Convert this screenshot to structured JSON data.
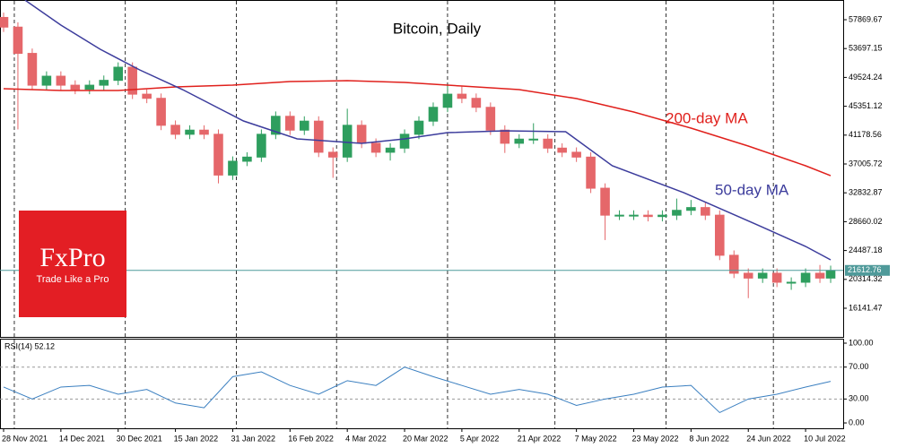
{
  "logo": {
    "brand": "FxPro",
    "tagline": "Trade Like a Pro"
  },
  "chart_data": [
    {
      "type": "candlestick",
      "title": "Bitcoin, Daily",
      "xlim": [
        -1,
        234.5
      ],
      "ylim": [
        12124,
        60721
      ],
      "yticks": [
        57869.67,
        53697.15,
        49524.24,
        45351.12,
        41178.56,
        37005.72,
        32832.87,
        28660.02,
        24487.18,
        20314.32,
        16141.47
      ],
      "xgrid": [
        3,
        34,
        65,
        93,
        124,
        154,
        185,
        215
      ],
      "last_price": 21612.76,
      "last_price_color": "#4f9a9a",
      "up_color": "#2e9e5e",
      "down_color": "#e5676a",
      "ohlc": {
        "x": [
          0,
          4,
          8,
          12,
          16,
          20,
          24,
          28,
          32,
          36,
          40,
          44,
          48,
          52,
          56,
          60,
          64,
          68,
          72,
          76,
          80,
          84,
          88,
          92,
          96,
          100,
          104,
          108,
          112,
          116,
          120,
          124,
          128,
          132,
          136,
          140,
          144,
          148,
          152,
          156,
          160,
          164,
          168,
          172,
          176,
          180,
          184,
          188,
          192,
          196,
          200,
          204,
          208,
          212,
          216,
          220,
          224,
          228,
          231
        ],
        "open": [
          58200,
          56800,
          53000,
          48400,
          49700,
          48400,
          47800,
          48400,
          49100,
          51000,
          47100,
          46500,
          42600,
          41300,
          41900,
          41300,
          35400,
          37400,
          38000,
          41300,
          43900,
          41900,
          43200,
          38700,
          38000,
          42600,
          40000,
          38700,
          39300,
          41300,
          43200,
          45200,
          47100,
          46500,
          45200,
          41900,
          40000,
          40600,
          40600,
          39300,
          38700,
          38000,
          33500,
          29600,
          29600,
          29600,
          29400,
          29600,
          30300,
          30700,
          29600,
          23800,
          21200,
          20500,
          21200,
          19900,
          19900,
          21200,
          20500
        ],
        "high": [
          58900,
          57500,
          53700,
          50400,
          50400,
          49100,
          49100,
          49800,
          51700,
          51700,
          47800,
          47200,
          43300,
          42600,
          42600,
          42000,
          38100,
          38700,
          42000,
          44600,
          44600,
          43900,
          43900,
          39400,
          45000,
          43300,
          40700,
          40000,
          42000,
          43900,
          45900,
          48300,
          48200,
          47200,
          45900,
          42600,
          41300,
          42900,
          41300,
          40000,
          39400,
          38700,
          34200,
          30300,
          30300,
          30300,
          30300,
          32000,
          31800,
          31400,
          30300,
          24500,
          21900,
          21900,
          21900,
          20600,
          21900,
          22400,
          22300
        ],
        "low": [
          56100,
          42000,
          47700,
          47700,
          47700,
          47100,
          47100,
          47700,
          48400,
          46400,
          45800,
          41900,
          40600,
          40600,
          40600,
          34200,
          34700,
          36700,
          37300,
          40600,
          41200,
          41200,
          38000,
          35000,
          37300,
          39300,
          38000,
          37500,
          38600,
          40600,
          42500,
          44500,
          45800,
          44500,
          41200,
          38600,
          39300,
          39900,
          38600,
          38000,
          37300,
          32800,
          26000,
          28900,
          28900,
          28700,
          28700,
          28900,
          29600,
          28900,
          23100,
          20500,
          17600,
          19800,
          19200,
          18800,
          19200,
          19800,
          19800
        ],
        "close": [
          56800,
          53000,
          48400,
          49700,
          48400,
          47800,
          48400,
          49100,
          51000,
          47100,
          46500,
          42600,
          41300,
          41900,
          41300,
          35400,
          37400,
          38000,
          41300,
          43900,
          41900,
          43200,
          38700,
          38000,
          42600,
          40000,
          38700,
          39300,
          41300,
          43200,
          45200,
          47100,
          46500,
          45200,
          41900,
          40000,
          40600,
          40600,
          39300,
          38700,
          38000,
          33500,
          29600,
          29600,
          29600,
          29400,
          29600,
          30300,
          30700,
          29600,
          23800,
          21200,
          20500,
          21200,
          19900,
          19900,
          21200,
          20500,
          21600
        ]
      },
      "series": [
        {
          "name": "200-day MA",
          "color": "#e0201c",
          "x": [
            0,
            16,
            32,
            48,
            64,
            80,
            96,
            112,
            128,
            144,
            160,
            176,
            192,
            208,
            224,
            231
          ],
          "values": [
            47890,
            47631,
            47631,
            48150,
            48409,
            48927,
            49057,
            48797,
            48280,
            47761,
            46465,
            44521,
            42188,
            39596,
            36745,
            35319
          ]
        },
        {
          "name": "50-day MA",
          "color": "#3c3c9c",
          "x": [
            6,
            16,
            27,
            38,
            50,
            67,
            82,
            100,
            112,
            124,
            140,
            157,
            170,
            190,
            210,
            224,
            231
          ],
          "values": [
            60700,
            57092,
            53593,
            50612,
            47761,
            43225,
            40633,
            39985,
            40633,
            41540,
            41799,
            41669,
            36745,
            32857,
            28321,
            25081,
            23137
          ]
        }
      ]
    },
    {
      "type": "line",
      "title": "RSI(14) 52.12",
      "xlim": [
        -1,
        234.5
      ],
      "ylim": [
        -6.7,
        105.6
      ],
      "yticks": [
        {
          "value": 100,
          "label": "100.00"
        },
        {
          "value": 70,
          "label": "70.00"
        },
        {
          "value": 30,
          "label": "30.00"
        },
        {
          "value": 0,
          "label": "0.00"
        }
      ],
      "xticks": [
        {
          "value": 0,
          "label": "28 Nov 2021"
        },
        {
          "value": 16,
          "label": "14 Dec 2021"
        },
        {
          "value": 32,
          "label": "30 Dec 2021"
        },
        {
          "value": 48,
          "label": "15 Jan 2022"
        },
        {
          "value": 64,
          "label": "31 Jan 2022"
        },
        {
          "value": 80,
          "label": "16 Feb 2022"
        },
        {
          "value": 96,
          "label": "4 Mar 2022"
        },
        {
          "value": 112,
          "label": "20 Mar 2022"
        },
        {
          "value": 128,
          "label": "5 Apr 2022"
        },
        {
          "value": 144,
          "label": "21 Apr 2022"
        },
        {
          "value": 160,
          "label": "7 May 2022"
        },
        {
          "value": 176,
          "label": "23 May 2022"
        },
        {
          "value": 192,
          "label": "8 Jun 2022"
        },
        {
          "value": 208,
          "label": "24 Jun 2022"
        },
        {
          "value": 224,
          "label": "10 Jul 2022"
        }
      ],
      "xgrid": [
        3,
        34,
        65,
        93,
        124,
        154,
        185,
        215
      ],
      "series": [
        {
          "color": "#3a7fc0",
          "x": [
            0,
            8,
            16,
            24,
            32,
            40,
            48,
            56,
            64,
            72,
            80,
            88,
            96,
            104,
            112,
            120,
            128,
            136,
            144,
            152,
            160,
            168,
            176,
            184,
            192,
            200,
            208,
            216,
            224,
            231
          ],
          "values": [
            45,
            30,
            45,
            47,
            36,
            42,
            25,
            19,
            58,
            64,
            47,
            36,
            53,
            47,
            70,
            58,
            47,
            36,
            42,
            36,
            22,
            30,
            36,
            45,
            47,
            13,
            30,
            36,
            45,
            52.12
          ]
        }
      ]
    }
  ]
}
